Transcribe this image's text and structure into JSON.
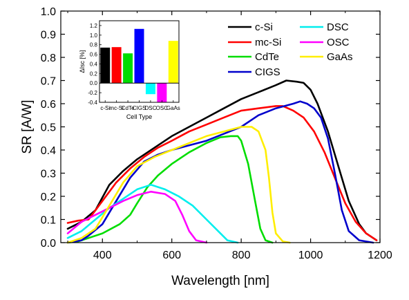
{
  "chart_data": [
    {
      "type": "line",
      "xlabel": "Wavelength [nm]",
      "ylabel": "SR [A/W]",
      "xlim": [
        280,
        1200
      ],
      "ylim": [
        0,
        1.0
      ],
      "x_ticks": [
        400,
        600,
        800,
        1000,
        1200
      ],
      "x_tick_labels": [
        "400",
        "600",
        "800",
        "1000",
        "1200"
      ],
      "y_ticks": [
        0,
        0.1,
        0.2,
        0.3,
        0.4,
        0.5,
        0.6,
        0.7,
        0.8,
        0.9,
        1.0
      ],
      "y_tick_labels": [
        "0.0",
        "0.1",
        "0.2",
        "0.3",
        "0.4",
        "0.5",
        "0.6",
        "0.7",
        "0.8",
        "0.9",
        "1.0"
      ],
      "grid": false,
      "legend": {
        "placement": "top-right",
        "columns": 2
      },
      "series": [
        {
          "name": "c-Si",
          "color": "#000000",
          "points": [
            [
              300,
              0.06
            ],
            [
              340,
              0.09
            ],
            [
              380,
              0.14
            ],
            [
              420,
              0.25
            ],
            [
              460,
              0.31
            ],
            [
              500,
              0.36
            ],
            [
              550,
              0.41
            ],
            [
              600,
              0.46
            ],
            [
              650,
              0.5
            ],
            [
              700,
              0.54
            ],
            [
              750,
              0.58
            ],
            [
              800,
              0.62
            ],
            [
              850,
              0.65
            ],
            [
              900,
              0.68
            ],
            [
              930,
              0.7
            ],
            [
              960,
              0.695
            ],
            [
              980,
              0.69
            ],
            [
              1000,
              0.66
            ],
            [
              1020,
              0.6
            ],
            [
              1050,
              0.48
            ],
            [
              1080,
              0.33
            ],
            [
              1110,
              0.18
            ],
            [
              1140,
              0.08
            ],
            [
              1160,
              0.04
            ],
            [
              1190,
              0.01
            ]
          ]
        },
        {
          "name": "mc-Si",
          "color": "#ff0000",
          "points": [
            [
              300,
              0.085
            ],
            [
              330,
              0.095
            ],
            [
              360,
              0.1
            ],
            [
              400,
              0.18
            ],
            [
              440,
              0.26
            ],
            [
              480,
              0.32
            ],
            [
              520,
              0.37
            ],
            [
              560,
              0.41
            ],
            [
              600,
              0.44
            ],
            [
              650,
              0.48
            ],
            [
              700,
              0.51
            ],
            [
              750,
              0.54
            ],
            [
              800,
              0.57
            ],
            [
              850,
              0.58
            ],
            [
              900,
              0.59
            ],
            [
              920,
              0.59
            ],
            [
              950,
              0.57
            ],
            [
              980,
              0.54
            ],
            [
              1010,
              0.48
            ],
            [
              1040,
              0.39
            ],
            [
              1070,
              0.28
            ],
            [
              1100,
              0.17
            ],
            [
              1130,
              0.09
            ],
            [
              1160,
              0.04
            ],
            [
              1190,
              0.01
            ]
          ]
        },
        {
          "name": "CdTe",
          "color": "#00dd00",
          "points": [
            [
              300,
              0.0
            ],
            [
              330,
              0.005
            ],
            [
              360,
              0.02
            ],
            [
              400,
              0.04
            ],
            [
              450,
              0.08
            ],
            [
              480,
              0.12
            ],
            [
              500,
              0.17
            ],
            [
              530,
              0.24
            ],
            [
              560,
              0.29
            ],
            [
              600,
              0.34
            ],
            [
              650,
              0.39
            ],
            [
              700,
              0.43
            ],
            [
              740,
              0.455
            ],
            [
              770,
              0.46
            ],
            [
              790,
              0.46
            ],
            [
              800,
              0.44
            ],
            [
              820,
              0.34
            ],
            [
              840,
              0.18
            ],
            [
              855,
              0.06
            ],
            [
              870,
              0.01
            ],
            [
              890,
              0.0
            ]
          ]
        },
        {
          "name": "CIGS",
          "color": "#0000cc",
          "points": [
            [
              300,
              0.0
            ],
            [
              340,
              0.01
            ],
            [
              360,
              0.03
            ],
            [
              400,
              0.08
            ],
            [
              440,
              0.18
            ],
            [
              480,
              0.28
            ],
            [
              520,
              0.35
            ],
            [
              560,
              0.38
            ],
            [
              600,
              0.4
            ],
            [
              650,
              0.42
            ],
            [
              700,
              0.44
            ],
            [
              750,
              0.47
            ],
            [
              800,
              0.5
            ],
            [
              850,
              0.55
            ],
            [
              900,
              0.58
            ],
            [
              950,
              0.6
            ],
            [
              970,
              0.61
            ],
            [
              990,
              0.6
            ],
            [
              1010,
              0.58
            ],
            [
              1030,
              0.54
            ],
            [
              1050,
              0.45
            ],
            [
              1070,
              0.3
            ],
            [
              1090,
              0.14
            ],
            [
              1110,
              0.05
            ],
            [
              1140,
              0.01
            ],
            [
              1180,
              0.0
            ]
          ]
        },
        {
          "name": "DSC",
          "color": "#00eeee",
          "points": [
            [
              300,
              0.02
            ],
            [
              340,
              0.05
            ],
            [
              380,
              0.1
            ],
            [
              420,
              0.15
            ],
            [
              460,
              0.19
            ],
            [
              500,
              0.23
            ],
            [
              540,
              0.25
            ],
            [
              580,
              0.23
            ],
            [
              620,
              0.2
            ],
            [
              660,
              0.16
            ],
            [
              700,
              0.1
            ],
            [
              740,
              0.04
            ],
            [
              760,
              0.01
            ],
            [
              790,
              0.0
            ]
          ]
        },
        {
          "name": "OSC",
          "color": "#ff00ff",
          "points": [
            [
              300,
              0.04
            ],
            [
              340,
              0.09
            ],
            [
              380,
              0.12
            ],
            [
              420,
              0.15
            ],
            [
              460,
              0.18
            ],
            [
              500,
              0.205
            ],
            [
              540,
              0.22
            ],
            [
              580,
              0.21
            ],
            [
              610,
              0.18
            ],
            [
              630,
              0.12
            ],
            [
              650,
              0.05
            ],
            [
              670,
              0.01
            ],
            [
              700,
              0.0
            ]
          ]
        },
        {
          "name": "GaAs",
          "color": "#ffee00",
          "points": [
            [
              300,
              0.0
            ],
            [
              340,
              0.02
            ],
            [
              380,
              0.06
            ],
            [
              420,
              0.16
            ],
            [
              460,
              0.26
            ],
            [
              500,
              0.33
            ],
            [
              550,
              0.37
            ],
            [
              600,
              0.4
            ],
            [
              650,
              0.43
            ],
            [
              700,
              0.46
            ],
            [
              750,
              0.48
            ],
            [
              800,
              0.5
            ],
            [
              830,
              0.5
            ],
            [
              850,
              0.48
            ],
            [
              870,
              0.4
            ],
            [
              880,
              0.28
            ],
            [
              890,
              0.13
            ],
            [
              900,
              0.04
            ],
            [
              920,
              0.005
            ],
            [
              940,
              0.0
            ]
          ]
        }
      ]
    },
    {
      "type": "bar",
      "xlabel": "Cell Type",
      "ylabel": "ΔIsc [%]",
      "ylim": [
        -0.4,
        1.3
      ],
      "y_ticks": [
        -0.4,
        -0.2,
        0.0,
        0.2,
        0.4,
        0.6,
        0.8,
        1.0,
        1.2
      ],
      "y_tick_labels": [
        "-0.4",
        "-0.2",
        "0.0",
        "0.2",
        "0.4",
        "0.6",
        "0.8",
        "1.0",
        "1.2"
      ],
      "categories": [
        "c-Si",
        "mc-Si",
        "CdTe",
        "CIGS",
        "DSC",
        "OSC",
        "GaAs"
      ],
      "values": [
        0.74,
        0.75,
        0.62,
        1.13,
        -0.23,
        -0.4,
        0.88
      ],
      "colors": [
        "#000000",
        "#ff0000",
        "#00dd00",
        "#0000ff",
        "#00ffff",
        "#ff00ff",
        "#ffff00"
      ],
      "grid": false
    }
  ]
}
